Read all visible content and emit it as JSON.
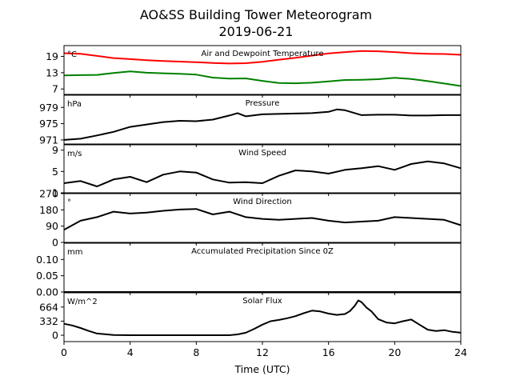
{
  "figure": {
    "title_line1": "AO&SS Building Tower Meteorogram",
    "title_line2": "2019-06-21",
    "xlabel": "Time (UTC)",
    "x_ticks": [
      "0",
      "4",
      "8",
      "12",
      "16",
      "20",
      "24"
    ]
  },
  "chart_data": [
    {
      "type": "line",
      "title": "Air and Dewpoint Temperature",
      "unit": "°C",
      "ylim": [
        5,
        23
      ],
      "y_ticks": [
        "19",
        "13",
        "7"
      ],
      "y_tick_values": [
        19,
        13,
        7
      ],
      "x_range": [
        0,
        24
      ],
      "series": [
        {
          "color": "#ff0000",
          "x": [
            0,
            1,
            2,
            3,
            4,
            5,
            6,
            7,
            8,
            9,
            10,
            11,
            12,
            13,
            14,
            15,
            16,
            17,
            18,
            19,
            20,
            21,
            22,
            23,
            24
          ],
          "y": [
            20.2,
            20.0,
            19.2,
            18.4,
            18.0,
            17.6,
            17.3,
            17.1,
            16.9,
            16.6,
            16.4,
            16.5,
            17.0,
            17.8,
            18.5,
            19.3,
            20.1,
            20.6,
            21.0,
            20.9,
            20.6,
            20.2,
            20.0,
            19.9,
            19.6
          ]
        },
        {
          "color": "#008000",
          "x": [
            0,
            1,
            2,
            3,
            4,
            5,
            6,
            7,
            8,
            9,
            10,
            11,
            12,
            13,
            14,
            15,
            16,
            17,
            18,
            19,
            20,
            21,
            22,
            23,
            24
          ],
          "y": [
            12.0,
            12.1,
            12.2,
            12.9,
            13.5,
            13.0,
            12.8,
            12.6,
            12.3,
            11.2,
            10.8,
            10.9,
            10.0,
            9.2,
            9.1,
            9.3,
            9.8,
            10.3,
            10.4,
            10.6,
            11.1,
            10.7,
            9.9,
            9.0,
            8.1
          ]
        }
      ]
    },
    {
      "type": "line",
      "title": "Pressure",
      "unit": "hPa",
      "ylim": [
        970,
        982
      ],
      "y_ticks": [
        "979",
        "975",
        "971"
      ],
      "y_tick_values": [
        979,
        975,
        971
      ],
      "x_range": [
        0,
        24
      ],
      "series": [
        {
          "color": "#000000",
          "x": [
            0,
            1,
            2,
            3,
            4,
            5,
            6,
            7,
            8,
            9,
            10,
            10.5,
            11,
            12,
            13,
            14,
            15,
            16,
            16.5,
            17,
            18,
            19,
            20,
            21,
            22,
            23,
            24
          ],
          "y": [
            971.0,
            971.3,
            972.1,
            973.0,
            974.2,
            974.8,
            975.4,
            975.7,
            975.6,
            976.0,
            977.0,
            977.6,
            976.8,
            977.3,
            977.4,
            977.5,
            977.6,
            977.9,
            978.5,
            978.3,
            977.1,
            977.2,
            977.2,
            977.0,
            977.0,
            977.1,
            977.1
          ]
        }
      ]
    },
    {
      "type": "line",
      "title": "Wind Speed",
      "unit": "m/s",
      "ylim": [
        1,
        10
      ],
      "y_ticks": [
        "9",
        "5",
        "1"
      ],
      "y_tick_values": [
        9,
        5,
        1
      ],
      "x_range": [
        0,
        24
      ],
      "series": [
        {
          "color": "#000000",
          "x": [
            0,
            1,
            2,
            3,
            4,
            5,
            6,
            7,
            8,
            9,
            10,
            11,
            12,
            13,
            14,
            15,
            16,
            17,
            18,
            19,
            20,
            21,
            22,
            23,
            24
          ],
          "y": [
            2.8,
            3.2,
            2.2,
            3.5,
            4.0,
            3.0,
            4.4,
            5.0,
            4.8,
            3.5,
            2.9,
            3.0,
            2.8,
            4.2,
            5.2,
            5.0,
            4.6,
            5.3,
            5.6,
            6.0,
            5.3,
            6.4,
            6.9,
            6.5,
            5.6
          ]
        }
      ]
    },
    {
      "type": "line",
      "title": "Wind Direction",
      "unit": "°",
      "ylim": [
        0,
        270
      ],
      "y_ticks": [
        "270",
        "180",
        "90",
        "0"
      ],
      "y_tick_values": [
        270,
        180,
        90,
        0
      ],
      "x_range": [
        0,
        24
      ],
      "series": [
        {
          "color": "#000000",
          "x": [
            0,
            1,
            2,
            3,
            4,
            5,
            6,
            7,
            8,
            9,
            10,
            11,
            12,
            13,
            14,
            15,
            16,
            17,
            18,
            19,
            20,
            21,
            22,
            23,
            24
          ],
          "y": [
            70,
            120,
            140,
            170,
            160,
            165,
            175,
            182,
            185,
            155,
            170,
            140,
            130,
            125,
            130,
            135,
            120,
            110,
            115,
            120,
            140,
            135,
            130,
            125,
            95
          ]
        }
      ]
    },
    {
      "type": "line",
      "title": "Accumulated Precipitation Since 0Z",
      "unit": "mm",
      "ylim": [
        0,
        0.15
      ],
      "y_ticks": [
        "0.10",
        "0.05",
        "0.00"
      ],
      "y_tick_values": [
        0.1,
        0.05,
        0.0
      ],
      "x_range": [
        0,
        24
      ],
      "series": [
        {
          "color": "#000000",
          "x": [
            0,
            24
          ],
          "y": [
            0,
            0
          ]
        }
      ]
    },
    {
      "type": "line",
      "title": "Solar Flux",
      "unit": "W/m^2",
      "ylim": [
        -150,
        1000
      ],
      "y_ticks": [
        "664",
        "332",
        "0"
      ],
      "y_tick_values": [
        664,
        332,
        0
      ],
      "x_range": [
        0,
        24
      ],
      "series": [
        {
          "color": "#000000",
          "x": [
            0,
            0.5,
            1,
            1.5,
            2,
            3,
            4,
            5,
            6,
            7,
            8,
            9,
            10,
            10.5,
            11,
            11.5,
            12,
            12.5,
            13,
            13.5,
            14,
            14.5,
            15,
            15.5,
            16,
            16.5,
            17,
            17.3,
            17.6,
            17.8,
            18,
            18.3,
            18.6,
            19,
            19.5,
            20,
            20.5,
            21,
            21.5,
            22,
            22.5,
            23,
            23.5,
            24
          ],
          "y": [
            270,
            230,
            170,
            100,
            40,
            5,
            0,
            0,
            0,
            0,
            0,
            0,
            0,
            20,
            60,
            150,
            250,
            330,
            360,
            400,
            450,
            520,
            580,
            560,
            510,
            480,
            500,
            570,
            700,
            820,
            780,
            650,
            560,
            380,
            300,
            280,
            330,
            370,
            250,
            130,
            100,
            120,
            80,
            60
          ]
        }
      ]
    }
  ]
}
